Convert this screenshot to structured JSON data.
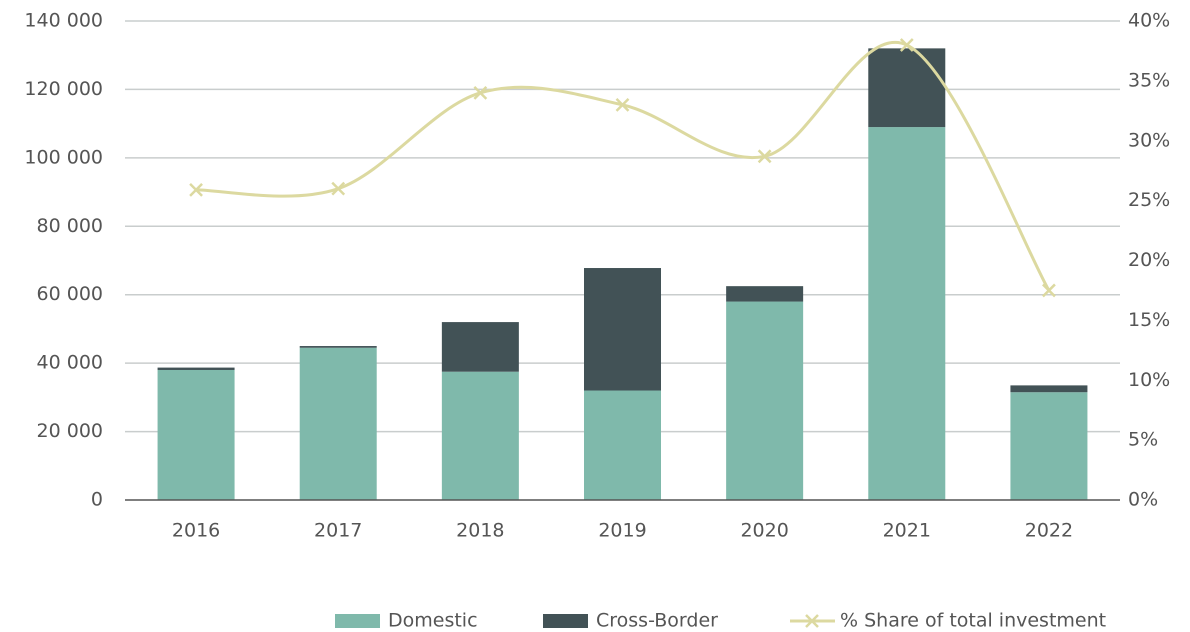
{
  "chart_data": {
    "type": "bar",
    "stacked": true,
    "categories": [
      "2016",
      "2017",
      "2018",
      "2019",
      "2020",
      "2021",
      "2022"
    ],
    "series": [
      {
        "name": "Domestic",
        "color": "#7fb9ab",
        "values": [
          38000,
          44500,
          37500,
          32000,
          58000,
          109000,
          31500
        ]
      },
      {
        "name": "Cross-Border",
        "color": "#425256",
        "values": [
          700,
          500,
          14500,
          35800,
          4500,
          23000,
          2000
        ]
      },
      {
        "name": "% Share of total investment",
        "color": "#dcd9a0",
        "type": "line",
        "axis": "y2",
        "values": [
          25.9,
          26.0,
          34.0,
          33.0,
          28.7,
          38.0,
          17.5
        ]
      }
    ],
    "ylim": [
      0,
      140000
    ],
    "yticks": [
      0,
      {
        "value": 20000,
        "label": "20 000"
      },
      {
        "value": 40000,
        "label": "40 000"
      },
      {
        "value": 60000,
        "label": "60 000"
      },
      {
        "value": 80000,
        "label": "80 000"
      },
      {
        "value": 100000,
        "label": "100 000"
      },
      {
        "value": 120000,
        "label": "120 000"
      },
      {
        "value": 140000,
        "label": "140 000"
      }
    ],
    "y2lim": [
      0,
      40
    ],
    "y2ticks": [
      {
        "value": 0,
        "label": "0%"
      },
      {
        "value": 5,
        "label": "5%"
      },
      {
        "value": 10,
        "label": "10%"
      },
      {
        "value": 15,
        "label": "15%"
      },
      {
        "value": 20,
        "label": "20%"
      },
      {
        "value": 25,
        "label": "25%"
      },
      {
        "value": 30,
        "label": "30%"
      },
      {
        "value": 35,
        "label": "35%"
      },
      {
        "value": 40,
        "label": "40%"
      }
    ],
    "grid": true,
    "legend": "bottom"
  }
}
